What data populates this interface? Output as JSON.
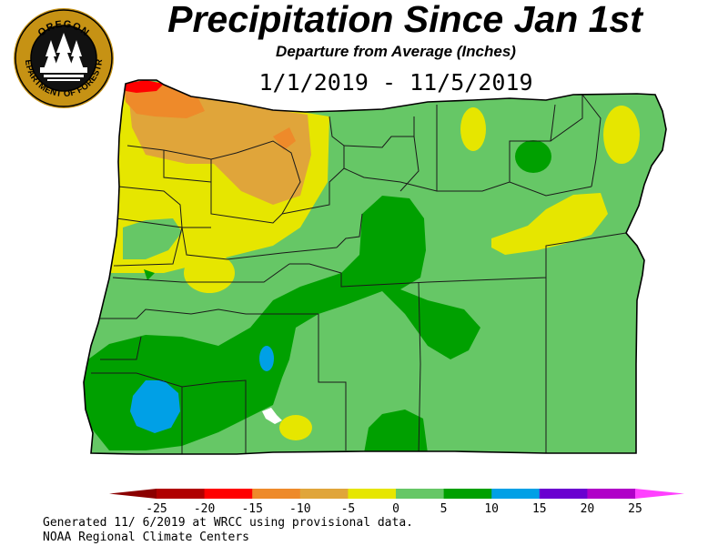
{
  "header": {
    "title": "Precipitation Since Jan 1st",
    "subtitle": "Departure from Average (Inches)",
    "date_range": "1/1/2019 - 11/5/2019"
  },
  "logo": {
    "top_text": "OREGON",
    "ring_text": "DEPARTMENT OF FORESTRY",
    "colors": {
      "ring": "#c69214",
      "background": "#111111",
      "trees": "#ffffff"
    }
  },
  "map": {
    "region": "Oregon",
    "color_classes": [
      {
        "range": "< -25",
        "color": "#8b0000"
      },
      {
        "range": "-25 to -20",
        "color": "#b00000"
      },
      {
        "range": "-20 to -15",
        "color": "#ff0000"
      },
      {
        "range": "-15 to -10",
        "color": "#ee8a2a"
      },
      {
        "range": "-10 to -5",
        "color": "#e0a53a"
      },
      {
        "range": "-5 to 0",
        "color": "#e6e600"
      },
      {
        "range": "0 to 5",
        "color": "#66c766"
      },
      {
        "range": "5 to 10",
        "color": "#00a000"
      },
      {
        "range": "10 to 15",
        "color": "#00a0e6"
      },
      {
        "range": "15 to 20",
        "color": "#6a00d0"
      },
      {
        "range": "20 to 25",
        "color": "#b000c8"
      },
      {
        "range": "> 25",
        "color": "#ff40ff"
      }
    ]
  },
  "legend": {
    "tick_labels": [
      "-25",
      "-20",
      "-15",
      "-10",
      "-5",
      "0",
      "5",
      "10",
      "15",
      "20",
      "25"
    ]
  },
  "footer": {
    "line1": "Generated 11/ 6/2019 at WRCC using provisional data.",
    "line2": "NOAA Regional Climate Centers"
  }
}
